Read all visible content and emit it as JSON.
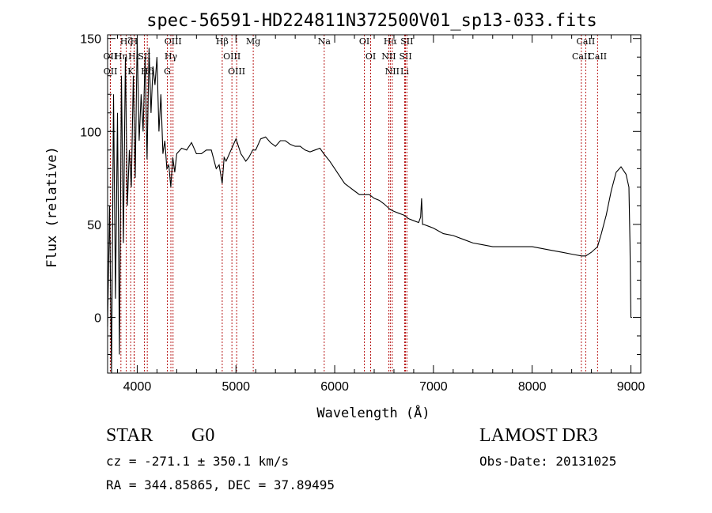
{
  "chart_data": {
    "type": "line",
    "title": "spec-56591-HD224811N372500V01_sp13-033.fits",
    "xlabel": "Wavelength (Å)",
    "ylabel": "Flux (relative)",
    "xlim": [
      3700,
      9100
    ],
    "ylim": [
      -30,
      152
    ],
    "x_ticks": [
      4000,
      5000,
      6000,
      7000,
      8000,
      9000
    ],
    "y_ticks": [
      0,
      50,
      100,
      150
    ],
    "series": [
      {
        "name": "flux",
        "x": [
          3700,
          3720,
          3740,
          3760,
          3780,
          3800,
          3820,
          3840,
          3860,
          3880,
          3900,
          3920,
          3940,
          3960,
          3980,
          4000,
          4020,
          4040,
          4060,
          4080,
          4100,
          4120,
          4140,
          4160,
          4180,
          4200,
          4220,
          4240,
          4260,
          4280,
          4300,
          4320,
          4340,
          4360,
          4380,
          4400,
          4450,
          4500,
          4550,
          4600,
          4650,
          4700,
          4750,
          4800,
          4830,
          4861,
          4880,
          4900,
          4950,
          5000,
          5050,
          5100,
          5130,
          5170,
          5200,
          5250,
          5300,
          5350,
          5400,
          5450,
          5500,
          5550,
          5600,
          5650,
          5700,
          5750,
          5800,
          5850,
          5890,
          5950,
          6000,
          6050,
          6100,
          6150,
          6200,
          6250,
          6300,
          6350,
          6400,
          6450,
          6500,
          6563,
          6600,
          6650,
          6700,
          6750,
          6800,
          6850,
          6870,
          6880,
          6890,
          6900,
          6950,
          7000,
          7100,
          7200,
          7300,
          7400,
          7500,
          7600,
          7700,
          7800,
          7900,
          8000,
          8100,
          8200,
          8300,
          8400,
          8500,
          8542,
          8600,
          8662,
          8700,
          8750,
          8800,
          8850,
          8900,
          8950,
          8980,
          8990,
          9000,
          9010
        ],
        "values": [
          -5,
          60,
          -30,
          120,
          10,
          110,
          -20,
          130,
          40,
          140,
          60,
          90,
          70,
          130,
          75,
          150,
          95,
          120,
          100,
          140,
          85,
          145,
          110,
          135,
          125,
          140,
          100,
          120,
          88,
          95,
          80,
          82,
          70,
          86,
          78,
          88,
          91,
          90,
          94,
          88,
          88,
          90,
          90,
          80,
          82,
          72,
          86,
          84,
          90,
          96,
          88,
          84,
          86,
          90,
          90,
          96,
          97,
          94,
          92,
          95,
          95,
          93,
          92,
          92,
          90,
          89,
          90,
          91,
          88,
          84,
          80,
          76,
          72,
          70,
          68,
          66,
          66,
          66,
          64,
          63,
          61,
          58,
          57,
          56,
          55,
          53,
          52,
          51,
          54,
          64,
          50,
          50,
          49,
          48,
          45,
          44,
          42,
          40,
          39,
          38,
          38,
          38,
          38,
          38,
          37,
          36,
          35,
          34,
          33,
          33,
          35,
          38,
          45,
          55,
          68,
          78,
          81,
          77,
          70,
          40,
          0,
          0
        ]
      }
    ],
    "line_markers": [
      {
        "label": "Hζ",
        "wavelength": 3889
      },
      {
        "label": "OII",
        "wavelength": 3727
      },
      {
        "label": "OII",
        "wavelength": 3729
      },
      {
        "label": "Hε",
        "wavelength": 3970
      },
      {
        "label": "Hη",
        "wavelength": 3835
      },
      {
        "label": "K",
        "wavelength": 3934
      },
      {
        "label": "H",
        "wavelength": 3968
      },
      {
        "label": "SII",
        "wavelength": 4072
      },
      {
        "label": "Hδ",
        "wavelength": 4102
      },
      {
        "label": "OIII",
        "wavelength": 4363
      },
      {
        "label": "Hγ",
        "wavelength": 4341
      },
      {
        "label": "G",
        "wavelength": 4305
      },
      {
        "label": "Hβ",
        "wavelength": 4861
      },
      {
        "label": "OIII",
        "wavelength": 4959
      },
      {
        "label": "OIII",
        "wavelength": 5007
      },
      {
        "label": "Mg",
        "wavelength": 5175
      },
      {
        "label": "Na",
        "wavelength": 5894
      },
      {
        "label": "OI",
        "wavelength": 6300
      },
      {
        "label": "OI",
        "wavelength": 6364
      },
      {
        "label": "Hα",
        "wavelength": 6563
      },
      {
        "label": "NII",
        "wavelength": 6548
      },
      {
        "label": "NII",
        "wavelength": 6583
      },
      {
        "label": "SII",
        "wavelength": 6717
      },
      {
        "label": "Li",
        "wavelength": 6708
      },
      {
        "label": "SII",
        "wavelength": 6731
      },
      {
        "label": "CaII",
        "wavelength": 8542
      },
      {
        "label": "CaII",
        "wavelength": 8498
      },
      {
        "label": "CaII",
        "wavelength": 8662
      }
    ]
  },
  "info": {
    "class_label": "STAR",
    "subclass": "G0",
    "survey": "LAMOST DR3",
    "cz_line": "cz = -271.1 ± 350.1 km/s",
    "obs_date": "Obs-Date: 20131025",
    "coords": "RA = 344.85865, DEC =  37.89495"
  },
  "colors": {
    "spectrum": "#000000",
    "marker": "#b00000",
    "axes": "#000000"
  }
}
